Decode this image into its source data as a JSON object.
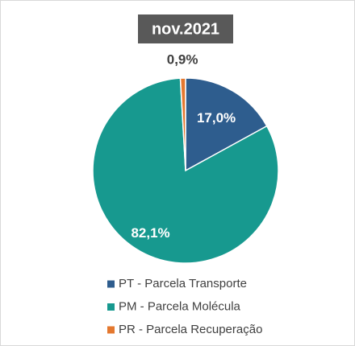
{
  "chart_data": {
    "type": "pie",
    "title": "nov.2021",
    "categories": [
      "PT - Parcela Transporte",
      "PM - Parcela Molécula",
      "PR - Parcela Recuperação"
    ],
    "values": [
      17.0,
      82.1,
      0.9
    ],
    "value_labels": [
      "17,0%",
      "82,1%",
      "0,9%"
    ],
    "colors": [
      "#2e5d8e",
      "#17998f",
      "#e4782f"
    ]
  }
}
